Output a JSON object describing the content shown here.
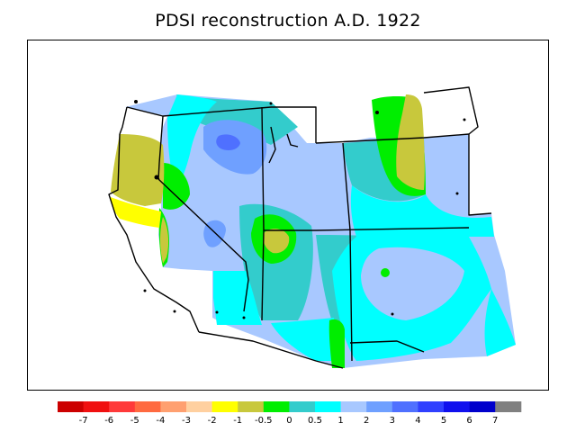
{
  "title": "PDSI reconstruction A.D. 1922",
  "legend": {
    "colors": [
      "#cc0000",
      "#f01010",
      "#ff3a3a",
      "#ff6a40",
      "#ffa070",
      "#ffd0a0",
      "#ffff00",
      "#c8c83c",
      "#00ee00",
      "#33cccc",
      "#00ffff",
      "#a8c8ff",
      "#6fa0ff",
      "#4f70ff",
      "#3040ff",
      "#1010ee",
      "#0000cc",
      "#808080"
    ],
    "labels": [
      "-7",
      "-6",
      "-5",
      "-4",
      "-3",
      "-2",
      "-1",
      "-0.5",
      "0",
      "0.5",
      "1",
      "2",
      "3",
      "4",
      "5",
      "6",
      "7"
    ]
  },
  "map": {
    "regions": "southwestern United States (CA, NV, UT, CO, AZ, NM, WY, ID, OR)",
    "dominant_classes": [
      "1",
      "2"
    ],
    "notes": "Wet anomalies (2–3) centered over Idaho/Nevada; dry pockets (-1 to -0.5) in northern California coast, eastern Wyoming, and central Utah."
  }
}
